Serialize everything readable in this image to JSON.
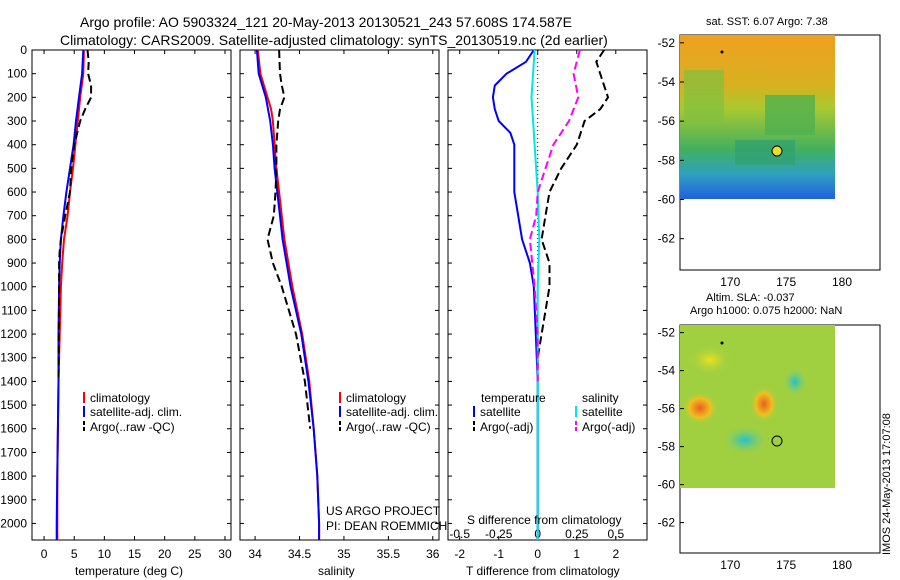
{
  "header": {
    "line1": "Argo profile: AO 5903324_121 20-May-2013 20130521_243 57.608S 174.587E",
    "line2": "Climatology: CARS2009. Satellite-adjusted climatology: synTS_20130519.nc (2d earlier)"
  },
  "colors": {
    "red": "#ff0000",
    "blue": "#0000ff",
    "black": "#000000",
    "cyan": "#00e5e5",
    "magenta": "#ff00ff"
  },
  "chart_data": [
    {
      "type": "line",
      "id": "temperature",
      "xlabel": "temperature (deg C)",
      "xticks": [
        0,
        5,
        10,
        15,
        20,
        25,
        30
      ],
      "xlim": [
        -2,
        31
      ],
      "yticks": [
        0,
        100,
        200,
        300,
        400,
        500,
        600,
        700,
        800,
        900,
        1000,
        1100,
        1200,
        1300,
        1400,
        1500,
        1600,
        1700,
        1800,
        1900,
        2000
      ],
      "ylim": [
        2070,
        0
      ],
      "legend": [
        "climatology",
        "satellite-adj. clim.",
        "Argo(..raw -QC)"
      ],
      "series": [
        {
          "name": "climatology",
          "color": "#ff0000",
          "dash": "solid",
          "depth": [
            0,
            100,
            200,
            300,
            400,
            500,
            600,
            700,
            800,
            900,
            1000,
            1200,
            1400,
            1600,
            1800,
            2000,
            2070
          ],
          "values": [
            6.6,
            6.5,
            6.0,
            5.6,
            5.2,
            4.8,
            4.3,
            3.9,
            3.3,
            3.0,
            2.8,
            2.6,
            2.4,
            2.3,
            2.2,
            2.2,
            2.2
          ]
        },
        {
          "name": "satellite-adj. clim.",
          "color": "#0000ff",
          "dash": "solid",
          "depth": [
            0,
            100,
            200,
            300,
            400,
            500,
            600,
            700,
            800,
            900,
            1000,
            1200,
            1400,
            1600,
            1800,
            2000,
            2070
          ],
          "values": [
            6.5,
            6.3,
            5.8,
            5.3,
            4.9,
            4.3,
            3.7,
            3.2,
            2.8,
            2.6,
            2.5,
            2.4,
            2.4,
            2.3,
            2.2,
            2.1,
            2.1
          ]
        },
        {
          "name": "Argo(..raw -QC)",
          "color": "#000000",
          "dash": "dash",
          "depth": [
            0,
            50,
            100,
            150,
            200,
            250,
            300,
            400,
            500,
            600,
            700,
            800,
            850,
            900,
            1000,
            1400
          ],
          "values": [
            7.2,
            7.4,
            7.3,
            7.8,
            7.8,
            6.8,
            6.0,
            5.0,
            4.5,
            4.3,
            3.5,
            2.8,
            2.6,
            2.5,
            2.5,
            2.4
          ]
        }
      ]
    },
    {
      "type": "line",
      "id": "salinity",
      "xlabel": "salinity",
      "xticks": [
        34,
        34.5,
        35,
        35.5,
        36
      ],
      "xlim": [
        33.83,
        36.07
      ],
      "ylim": [
        2070,
        0
      ],
      "legend": [
        "climatology",
        "satellite-adj. clim.",
        "Argo(..raw -QC)"
      ],
      "annotation": [
        "US ARGO PROJECT",
        "PI: DEAN ROEMMICH"
      ],
      "series": [
        {
          "name": "climatology",
          "color": "#ff0000",
          "dash": "solid",
          "depth": [
            0,
            100,
            150,
            200,
            250,
            300,
            400,
            500,
            600,
            800,
            1000,
            1200,
            1400,
            1600,
            1800,
            2000,
            2070
          ],
          "values": [
            34.03,
            34.06,
            34.1,
            34.14,
            34.18,
            34.2,
            34.22,
            34.24,
            34.27,
            34.33,
            34.42,
            34.53,
            34.61,
            34.66,
            34.7,
            34.72,
            34.72
          ]
        },
        {
          "name": "satellite-adj. clim.",
          "color": "#0000ff",
          "dash": "solid",
          "depth": [
            0,
            100,
            200,
            300,
            400,
            500,
            600,
            800,
            1000,
            1200,
            1400,
            1600,
            1800,
            2000,
            2070
          ],
          "values": [
            34.02,
            34.04,
            34.12,
            34.17,
            34.2,
            34.22,
            34.25,
            34.31,
            34.4,
            34.52,
            34.6,
            34.66,
            34.7,
            34.72,
            34.72
          ]
        },
        {
          "name": "Argo(..raw -QC)",
          "color": "#000000",
          "dash": "dash",
          "depth": [
            0,
            100,
            150,
            200,
            250,
            300,
            400,
            500,
            600,
            700,
            800,
            900,
            1000,
            1200,
            1400,
            1600
          ],
          "values": [
            34.27,
            34.28,
            34.3,
            34.33,
            34.28,
            34.26,
            34.24,
            34.24,
            34.23,
            34.21,
            34.14,
            34.2,
            34.3,
            34.46,
            34.56,
            34.62
          ]
        }
      ]
    },
    {
      "type": "line",
      "id": "difference",
      "xlabel": "T difference from climatology",
      "xlabel_top": "S difference from climatology",
      "xticks": [
        -2,
        -1,
        0,
        1,
        2
      ],
      "xticklabels": [
        "-2",
        "-1",
        "0",
        "1",
        "2"
      ],
      "xticks_top": [
        -0.5,
        -0.25,
        0,
        0.25,
        0.5
      ],
      "xticklabels_top": [
        "-0.5",
        "-0.25",
        "0",
        "0.25",
        "0.5"
      ],
      "xlim": [
        -2.3,
        2.8
      ],
      "ylim": [
        2070,
        0
      ],
      "legend_titles": [
        "temperature",
        "salinity"
      ],
      "legend_t": [
        "satellite",
        "Argo(-adj)"
      ],
      "legend_s": [
        "satellite",
        "Argo(-adj)"
      ],
      "series": [
        {
          "name": "satellite",
          "group": "temperature",
          "color": "#0000ff",
          "dash": "solid",
          "depth": [
            0,
            50,
            100,
            150,
            200,
            250,
            300,
            350,
            400,
            450,
            500,
            600,
            700,
            800,
            900,
            1000,
            1200,
            1400,
            2070
          ],
          "values": [
            -0.1,
            -0.3,
            -0.8,
            -1.1,
            -1.15,
            -1.1,
            -1.0,
            -0.7,
            -0.6,
            -0.6,
            -0.6,
            -0.6,
            -0.5,
            -0.4,
            -0.2,
            -0.1,
            -0.05,
            0,
            0
          ]
        },
        {
          "name": "Argo(-adj)",
          "group": "temperature",
          "color": "#000000",
          "dash": "dash",
          "depth": [
            0,
            50,
            100,
            200,
            250,
            300,
            400,
            500,
            600,
            700,
            800,
            900,
            1000,
            1200,
            1300,
            1400
          ],
          "values": [
            1.7,
            1.5,
            1.6,
            1.8,
            1.6,
            1.2,
            1.0,
            0.6,
            0.3,
            0.2,
            0.1,
            0.3,
            0.3,
            0.1,
            0.0,
            0.0
          ]
        },
        {
          "name": "satellite",
          "group": "salinity",
          "color": "#00e5e5",
          "dash": "solid",
          "depth": [
            0,
            100,
            200,
            300,
            400,
            600,
            800,
            1000,
            1400,
            2070
          ],
          "values": [
            -0.02,
            -0.03,
            -0.04,
            -0.03,
            -0.02,
            0.0,
            0.01,
            0.0,
            0.0,
            0.0
          ]
        },
        {
          "name": "Argo(-adj)",
          "group": "salinity",
          "color": "#ff00ff",
          "dash": "dash",
          "depth": [
            0,
            100,
            200,
            300,
            400,
            500,
            600,
            700,
            800,
            1000,
            1200,
            1400
          ],
          "values": [
            0.27,
            0.23,
            0.26,
            0.2,
            0.1,
            0.05,
            0.0,
            -0.01,
            -0.05,
            -0.02,
            0.0,
            0.0
          ]
        }
      ]
    }
  ],
  "sst_map": {
    "title": "sat. SST: 6.07 Argo: 7.38",
    "xticks": [
      170,
      175,
      180
    ],
    "yticks": [
      -52,
      -54,
      -56,
      -58,
      -60,
      -62
    ],
    "marker": {
      "lon": 174.587,
      "lat": -57.608
    }
  },
  "sla_map": {
    "title_line1": "Altim. SLA: -0.037",
    "title_line2": "Argo h1000: 0.075 h2000: NaN",
    "xticks": [
      170,
      175,
      180
    ],
    "yticks": [
      -52,
      -54,
      -56,
      -58,
      -60,
      -62
    ],
    "marker": {
      "lon": 174.587,
      "lat": -57.608
    }
  },
  "footer": {
    "stamp": "IMOS 24-May-2013 17:07:08"
  }
}
